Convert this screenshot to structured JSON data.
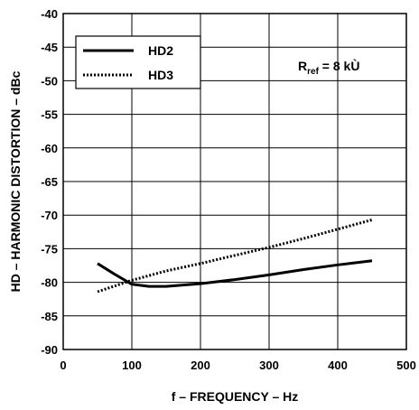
{
  "chart_data": {
    "type": "line",
    "xlabel": "f – FREQUENCY – Hz",
    "ylabel": "HD – HARMONIC DISTORTION – dBc",
    "xlim": [
      0,
      500
    ],
    "ylim": [
      -90,
      -40
    ],
    "xticks": [
      "0",
      "100",
      "200",
      "300",
      "400",
      "500"
    ],
    "yticks": [
      "-90",
      "-85",
      "-80",
      "-75",
      "-70",
      "-65",
      "-60",
      "-55",
      "-50",
      "-45",
      "-40"
    ],
    "grid": true,
    "legend_position": "top-left",
    "annotation": {
      "main": "R",
      "sub": "ref",
      "rest": " = 8 kÙ"
    },
    "series": [
      {
        "name": "HD2",
        "style": "solid",
        "x": [
          50,
          75,
          100,
          125,
          150,
          200,
          250,
          300,
          350,
          400,
          450
        ],
        "values": [
          -77.2,
          -78.8,
          -80.3,
          -80.6,
          -80.6,
          -80.2,
          -79.6,
          -78.9,
          -78.1,
          -77.4,
          -76.8
        ]
      },
      {
        "name": "HD3",
        "style": "dotted",
        "x": [
          50,
          100,
          150,
          200,
          250,
          300,
          350,
          400,
          450
        ],
        "values": [
          -81.4,
          -79.7,
          -78.3,
          -77.2,
          -76.0,
          -74.8,
          -73.5,
          -72.1,
          -70.7
        ]
      }
    ]
  }
}
